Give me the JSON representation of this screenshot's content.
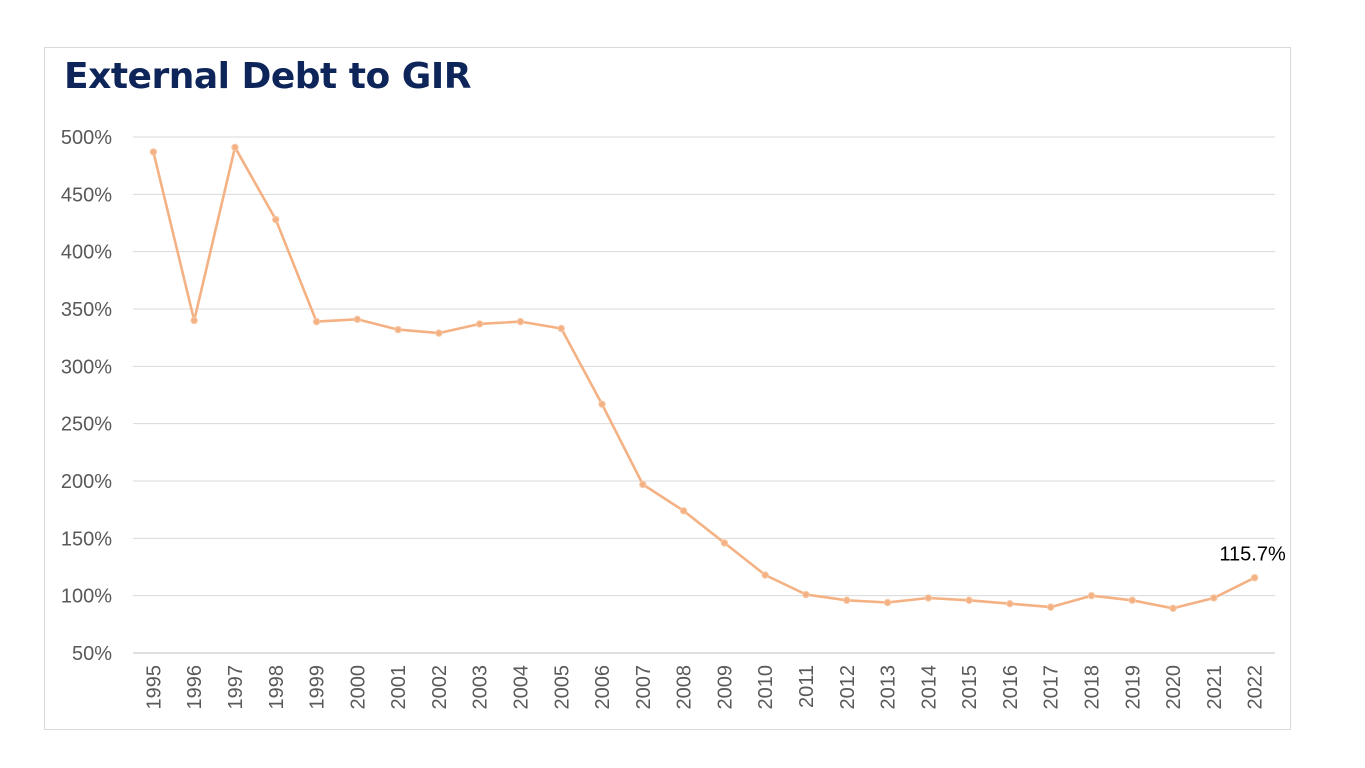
{
  "chart_data": {
    "type": "line",
    "title": "External Debt to GIR",
    "xlabel": "",
    "ylabel": "",
    "ylim": [
      50,
      500
    ],
    "yticks": [
      50,
      100,
      150,
      200,
      250,
      300,
      350,
      400,
      450,
      500
    ],
    "ytick_labels": [
      "50%",
      "100%",
      "150%",
      "200%",
      "250%",
      "300%",
      "350%",
      "400%",
      "450%",
      "500%"
    ],
    "grid": true,
    "legend": "none",
    "x": [
      "1995",
      "1996",
      "1997",
      "1998",
      "1999",
      "2000",
      "2001",
      "2002",
      "2003",
      "2004",
      "2005",
      "2006",
      "2007",
      "2008",
      "2009",
      "2010",
      "2011",
      "2012",
      "2013",
      "2014",
      "2015",
      "2016",
      "2017",
      "2018",
      "2019",
      "2020",
      "2021",
      "2022"
    ],
    "series": [
      {
        "color": "#f4b183",
        "values": [
          487,
          340,
          491,
          428,
          339,
          341,
          332,
          329,
          337,
          339,
          333,
          267,
          197,
          174,
          146,
          118,
          101,
          96,
          94,
          98,
          96,
          93,
          90,
          100,
          96,
          89,
          98,
          115.7
        ]
      }
    ],
    "annotation": {
      "index": 27,
      "label": "115.7%"
    }
  }
}
